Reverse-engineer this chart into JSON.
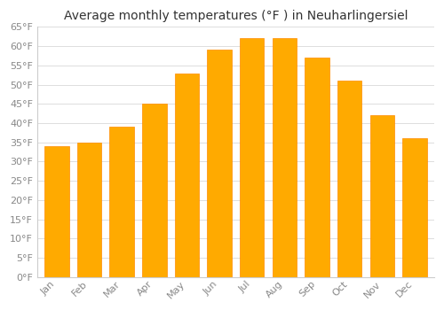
{
  "title": "Average monthly temperatures (°F ) in Neuharlingersiel",
  "months": [
    "Jan",
    "Feb",
    "Mar",
    "Apr",
    "May",
    "Jun",
    "Jul",
    "Aug",
    "Sep",
    "Oct",
    "Nov",
    "Dec"
  ],
  "values": [
    34,
    35,
    39,
    45,
    53,
    59,
    62,
    62,
    57,
    51,
    42,
    36
  ],
  "bar_color": "#FFAA00",
  "bar_edge_color": "#FF8C00",
  "background_color": "#FFFFFF",
  "grid_color": "#DDDDDD",
  "ylim": [
    0,
    65
  ],
  "yticks": [
    0,
    5,
    10,
    15,
    20,
    25,
    30,
    35,
    40,
    45,
    50,
    55,
    60,
    65
  ],
  "title_fontsize": 10,
  "tick_fontsize": 8,
  "tick_color": "#888888",
  "bar_width": 0.75
}
